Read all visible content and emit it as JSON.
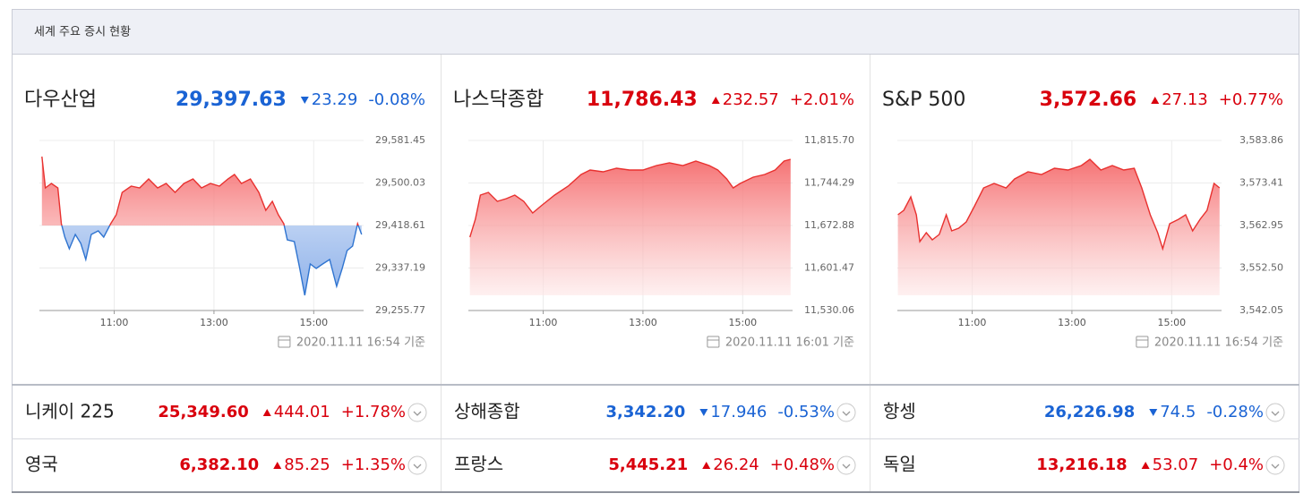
{
  "header": {
    "title": "세계 주요 증시 현황"
  },
  "colors": {
    "up": "#d9000d",
    "down": "#1a63d4"
  },
  "panels": [
    {
      "name": "다우산업",
      "price": "29,397.63",
      "direction": "down",
      "change": "23.29",
      "change_pct": "-0.08%",
      "timestamp": "2020.11.11 16:54 기준",
      "chart": {
        "type": "area",
        "fill": "baseline",
        "color": "#e8312f",
        "down_color": "#2f74d0",
        "xlim": [
          9.5,
          16
        ],
        "ylim": [
          29255.77,
          29581.45
        ],
        "xticks": [
          {
            "value": 11,
            "label": "11:00"
          },
          {
            "value": 13,
            "label": "13:00"
          },
          {
            "value": 15,
            "label": "15:00"
          }
        ],
        "yticks": [
          {
            "value": 29255.77,
            "label": "29,255.77"
          },
          {
            "value": 29337.19,
            "label": "29,337.19"
          },
          {
            "value": 29418.61,
            "label": "29,418.61"
          },
          {
            "value": 29500.03,
            "label": "29,500.03"
          },
          {
            "value": 29581.45,
            "label": "29,581.45"
          }
        ],
        "x": [
          9.55,
          9.62,
          9.74,
          9.87,
          9.94,
          10.01,
          10.1,
          10.22,
          10.33,
          10.43,
          10.54,
          10.68,
          10.79,
          10.93,
          11.04,
          11.16,
          11.34,
          11.51,
          11.69,
          11.87,
          12.04,
          12.22,
          12.4,
          12.58,
          12.75,
          12.93,
          13.11,
          13.28,
          13.41,
          13.55,
          13.73,
          13.9,
          14.04,
          14.17,
          14.29,
          14.4,
          14.47,
          14.61,
          14.72,
          14.82,
          14.93,
          15.05,
          15.18,
          15.32,
          15.46,
          15.57,
          15.67,
          15.78,
          15.88,
          15.96
        ],
        "values": [
          29550.6,
          29490.6,
          29499.2,
          29490.6,
          29422.0,
          29396.3,
          29374.0,
          29401.4,
          29384.3,
          29353.5,
          29401.4,
          29408.3,
          29396.3,
          29422.0,
          29439.2,
          29482.0,
          29494.0,
          29490.6,
          29507.7,
          29490.6,
          29499.2,
          29482.0,
          29499.2,
          29507.7,
          29490.6,
          29499.2,
          29494.0,
          29507.7,
          29516.3,
          29499.2,
          29507.7,
          29482.0,
          29447.8,
          29464.9,
          29439.2,
          29422.0,
          29391.2,
          29387.8,
          29336.3,
          29284.9,
          29344.9,
          29336.3,
          29344.9,
          29353.5,
          29302.0,
          29336.3,
          29370.6,
          29379.2,
          29422.0,
          29401.4
        ]
      }
    },
    {
      "name": "나스닥종합",
      "price": "11,786.43",
      "direction": "up",
      "change": "232.57",
      "change_pct": "+2.01%",
      "timestamp": "2020.11.11 16:01 기준",
      "chart": {
        "type": "area",
        "fill": "bottom",
        "color": "#e8312f",
        "xlim": [
          9.5,
          16
        ],
        "ylim": [
          11530.06,
          11815.7
        ],
        "xticks": [
          {
            "value": 11,
            "label": "11:00"
          },
          {
            "value": 13,
            "label": "13:00"
          },
          {
            "value": 15,
            "label": "15:00"
          }
        ],
        "yticks": [
          {
            "value": 11530.06,
            "label": "11,530.06"
          },
          {
            "value": 11601.47,
            "label": "11,601.47"
          },
          {
            "value": 11672.88,
            "label": "11,672.88"
          },
          {
            "value": 11744.29,
            "label": "11,744.29"
          },
          {
            "value": 11815.7,
            "label": "11,815.70"
          }
        ],
        "x": [
          9.53,
          9.64,
          9.74,
          9.9,
          10.08,
          10.26,
          10.43,
          10.61,
          10.79,
          10.96,
          11.23,
          11.5,
          11.76,
          11.94,
          12.2,
          12.47,
          12.73,
          13.0,
          13.27,
          13.53,
          13.8,
          14.06,
          14.33,
          14.5,
          14.68,
          14.81,
          14.95,
          15.21,
          15.44,
          15.65,
          15.83,
          15.96
        ],
        "values": [
          11653.3,
          11683.4,
          11724.0,
          11728.5,
          11713.5,
          11718.0,
          11724.0,
          11713.5,
          11693.9,
          11706.0,
          11724.0,
          11739.0,
          11758.6,
          11766.1,
          11763.1,
          11769.1,
          11766.1,
          11766.1,
          11773.6,
          11778.1,
          11773.6,
          11781.1,
          11773.6,
          11766.1,
          11751.1,
          11736.0,
          11743.5,
          11754.1,
          11758.6,
          11766.1,
          11781.1,
          11784.1
        ]
      }
    },
    {
      "name": "S&P 500",
      "price": "3,572.66",
      "direction": "up",
      "change": "27.13",
      "change_pct": "+0.77%",
      "timestamp": "2020.11.11 16:54 기준",
      "chart": {
        "type": "area",
        "fill": "bottom",
        "color": "#e8312f",
        "xlim": [
          9.5,
          16
        ],
        "ylim": [
          3542.05,
          3583.86
        ],
        "xticks": [
          {
            "value": 11,
            "label": "11:00"
          },
          {
            "value": 13,
            "label": "13:00"
          },
          {
            "value": 15,
            "label": "15:00"
          }
        ],
        "yticks": [
          {
            "value": 3542.05,
            "label": "3,542.05"
          },
          {
            "value": 3552.5,
            "label": "3,552.50"
          },
          {
            "value": 3562.95,
            "label": "3,562.95"
          },
          {
            "value": 3573.41,
            "label": "3,573.41"
          },
          {
            "value": 3583.86,
            "label": "3,583.86"
          }
        ],
        "x": [
          9.51,
          9.63,
          9.77,
          9.88,
          9.95,
          10.08,
          10.2,
          10.34,
          10.48,
          10.59,
          10.73,
          10.88,
          11.05,
          11.23,
          11.44,
          11.68,
          11.85,
          12.12,
          12.39,
          12.65,
          12.92,
          13.19,
          13.36,
          13.58,
          13.81,
          14.04,
          14.25,
          14.4,
          14.57,
          14.72,
          14.82,
          14.96,
          15.14,
          15.28,
          15.42,
          15.57,
          15.71,
          15.85,
          15.96
        ],
        "values": [
          3565.6,
          3566.7,
          3570.0,
          3565.6,
          3559.0,
          3561.2,
          3559.43,
          3560.75,
          3565.6,
          3561.63,
          3562.3,
          3563.84,
          3567.8,
          3572.2,
          3573.3,
          3572.2,
          3574.4,
          3576.16,
          3575.5,
          3577.04,
          3576.6,
          3577.7,
          3579.24,
          3576.6,
          3577.7,
          3576.6,
          3577.04,
          3572.2,
          3565.6,
          3561.2,
          3557.23,
          3563.39,
          3564.5,
          3565.6,
          3561.63,
          3564.5,
          3566.7,
          3573.3,
          3572.2
        ]
      }
    }
  ],
  "rows": [
    [
      {
        "name": "니케이 225",
        "price": "25,349.60",
        "direction": "up",
        "change": "444.01",
        "change_pct": "+1.78%"
      },
      {
        "name": "상해종합",
        "price": "3,342.20",
        "direction": "down",
        "change": "17.946",
        "change_pct": "-0.53%"
      },
      {
        "name": "항셍",
        "price": "26,226.98",
        "direction": "down",
        "change": "74.5",
        "change_pct": "-0.28%"
      }
    ],
    [
      {
        "name": "영국",
        "price": "6,382.10",
        "direction": "up",
        "change": "85.25",
        "change_pct": "+1.35%"
      },
      {
        "name": "프랑스",
        "price": "5,445.21",
        "direction": "up",
        "change": "26.24",
        "change_pct": "+0.48%"
      },
      {
        "name": "독일",
        "price": "13,216.18",
        "direction": "up",
        "change": "53.07",
        "change_pct": "+0.4%"
      }
    ]
  ]
}
